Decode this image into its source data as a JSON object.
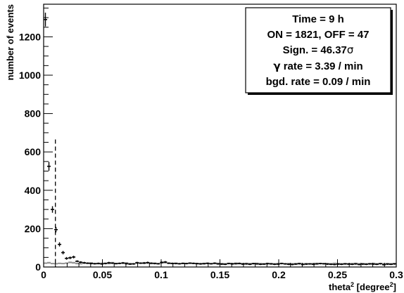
{
  "chart_data": {
    "type": "histogram",
    "title": "",
    "xlabel": {
      "base": "theta",
      "sup": "2",
      "rest": " [degree",
      "sup2": "2",
      "end": "]"
    },
    "ylabel": "number of events",
    "xlim": [
      0,
      0.3
    ],
    "ylim": [
      0,
      1370
    ],
    "x_tick_labels": [
      "0",
      "0.05",
      "0.1",
      "0.15",
      "0.2",
      "0.25",
      "0.3"
    ],
    "x_tick_values": [
      0,
      0.05,
      0.1,
      0.15,
      0.2,
      0.25,
      0.3
    ],
    "y_tick_labels": [
      "0",
      "200",
      "400",
      "600",
      "800",
      "1000",
      "1200"
    ],
    "y_tick_values": [
      0,
      200,
      400,
      600,
      800,
      1000,
      1200
    ],
    "bin_width": 0.003,
    "cut_value": 0.01,
    "cut_top": 665,
    "series": [
      {
        "kind": "on",
        "values": [
          1290,
          525,
          300,
          195,
          118,
          75,
          45,
          48,
          52,
          30,
          25,
          22,
          20,
          18,
          17,
          19,
          16,
          18,
          22,
          20,
          18,
          19,
          21,
          17,
          15,
          16,
          22,
          20,
          21,
          23,
          20,
          18,
          17,
          24,
          26,
          20,
          19,
          18,
          17,
          19,
          18,
          20,
          19,
          18,
          16,
          17,
          19,
          17,
          20,
          16,
          15,
          14,
          18,
          16,
          17,
          19,
          15,
          16,
          14,
          18,
          16,
          14,
          15,
          17,
          16,
          14,
          15,
          18,
          16,
          14,
          13,
          15,
          17,
          13,
          15,
          16,
          14,
          16,
          18,
          17,
          15,
          14,
          13,
          15,
          14,
          16,
          15,
          14,
          16,
          13,
          15,
          14,
          16,
          15,
          14,
          17,
          12,
          15,
          14,
          16
        ],
        "errors": [
          36,
          23,
          17,
          14,
          11,
          9,
          7,
          7,
          7,
          5,
          5,
          5,
          4,
          4,
          4,
          4,
          4,
          4,
          5,
          4,
          4,
          4,
          5,
          4,
          4,
          4,
          5,
          4,
          5,
          5,
          4,
          4,
          4,
          5,
          5,
          4,
          4,
          4,
          4,
          4,
          4,
          4,
          4,
          4,
          4,
          4,
          4,
          4,
          4,
          4,
          4,
          4,
          4,
          4,
          4,
          4,
          4,
          4,
          4,
          4,
          4,
          4,
          4,
          4,
          4,
          4,
          4,
          4,
          4,
          4,
          4,
          4,
          4,
          4,
          4,
          4,
          4,
          4,
          4,
          4,
          4,
          4,
          4,
          4,
          4,
          4,
          4,
          4,
          4,
          4,
          4,
          4,
          4,
          4,
          4,
          4,
          4,
          4,
          4,
          4
        ]
      },
      {
        "kind": "off",
        "values": [
          20,
          22,
          18,
          17,
          19,
          18,
          20,
          24,
          22,
          18,
          17,
          20,
          19,
          21,
          18,
          17,
          19,
          20,
          18,
          22,
          17,
          19,
          20,
          21,
          18,
          17,
          22,
          20,
          19,
          21,
          18,
          20,
          17,
          22,
          23,
          19,
          18,
          20,
          17,
          19,
          18,
          20,
          19,
          17,
          18,
          19,
          20,
          17,
          18,
          19,
          18,
          17,
          19,
          18,
          20,
          17,
          18,
          19,
          18,
          17,
          19,
          18,
          17,
          19,
          18,
          17,
          18,
          19,
          17,
          18,
          17,
          18,
          19,
          17,
          18,
          17,
          18,
          19,
          18,
          17,
          18,
          17,
          19,
          18,
          17,
          18,
          17,
          18,
          19,
          17,
          18,
          17,
          18,
          19,
          17,
          18,
          17,
          18,
          17,
          18
        ],
        "errors": [
          4,
          5,
          4,
          4,
          4,
          4,
          4,
          5,
          5,
          4,
          4,
          4,
          4,
          5,
          4,
          4,
          4,
          4,
          4,
          5,
          4,
          4,
          4,
          5,
          4,
          4,
          5,
          4,
          4,
          5,
          4,
          4,
          4,
          5,
          5,
          4,
          4,
          4,
          4,
          4,
          4,
          4,
          4,
          4,
          4,
          4,
          4,
          4,
          4,
          4,
          4,
          4,
          4,
          4,
          4,
          4,
          4,
          4,
          4,
          4,
          4,
          4,
          4,
          4,
          4,
          4,
          4,
          4,
          4,
          4,
          4,
          4,
          4,
          4,
          4,
          4,
          4,
          4,
          4,
          4,
          4,
          4,
          4,
          4,
          4,
          4,
          4,
          4,
          4,
          4,
          4,
          4,
          4,
          4,
          4,
          4,
          4,
          4,
          4,
          4
        ]
      }
    ],
    "grid": false,
    "stats_box": {
      "placement": "top-right",
      "lines": [
        {
          "pre": "Time = 9 h"
        },
        {
          "pre": "ON = 1821, OFF = 47"
        },
        {
          "pre": "Sign. = 46.37",
          "sym": "σ"
        },
        {
          "sym": "γ",
          "pre": " rate = 3.39 / min"
        },
        {
          "pre": "bgd. rate = 0.09 / min"
        }
      ]
    },
    "colors": {
      "on": "#000000",
      "off": "#8c8c8c",
      "off_fill": "#bdbdbd",
      "frame": "#000000"
    }
  }
}
